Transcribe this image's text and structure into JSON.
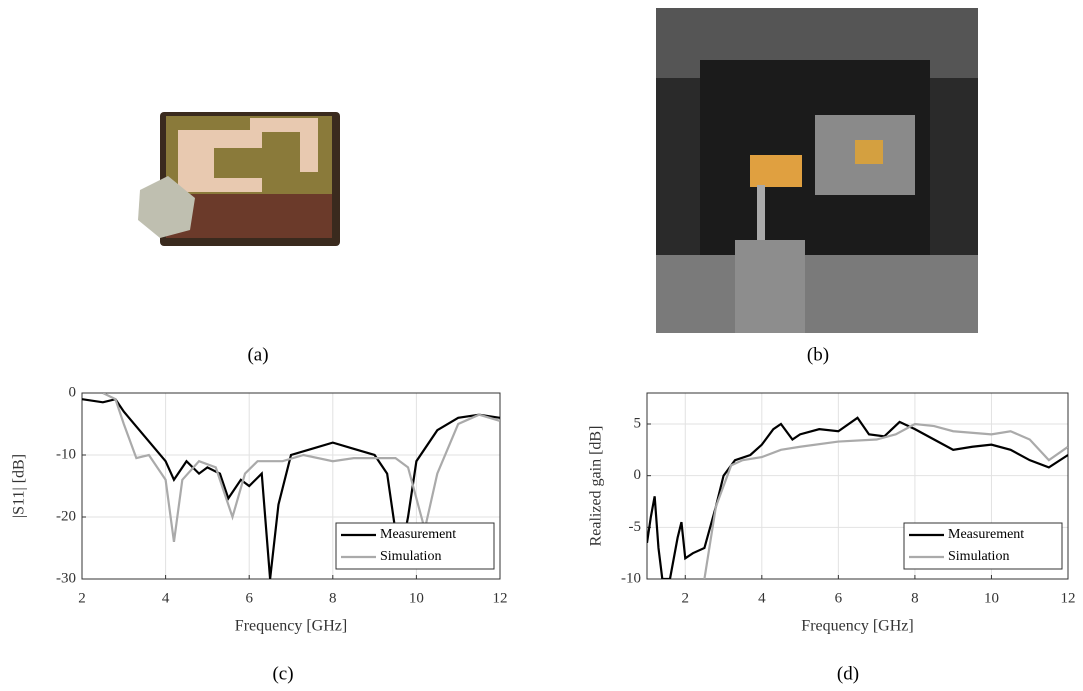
{
  "panel_labels": [
    "(a)",
    "(b)",
    "(c)",
    "(d)"
  ],
  "chart_data": [
    {
      "type": "line",
      "xlabel": "Frequency [GHz]",
      "ylabel": "|S11| [dB]",
      "xlim": [
        2,
        12
      ],
      "ylim": [
        -30,
        0
      ],
      "xticks": [
        2,
        4,
        6,
        8,
        10,
        12
      ],
      "yticks": [
        0,
        -10,
        -20,
        -30
      ],
      "grid": true,
      "legend": "lower-right",
      "series": [
        {
          "name": "Measurement",
          "color": "#000000",
          "x": [
            2,
            2.5,
            2.8,
            3,
            3.5,
            4,
            4.2,
            4.5,
            4.8,
            5,
            5.3,
            5.5,
            5.8,
            6,
            6.3,
            6.5,
            6.7,
            7,
            7.5,
            8,
            8.5,
            9,
            9.3,
            9.6,
            9.8,
            10,
            10.5,
            11,
            11.5,
            12
          ],
          "values": [
            -1,
            -1.5,
            -1,
            -3,
            -7,
            -11,
            -14,
            -11,
            -13,
            -12,
            -13,
            -17,
            -14,
            -15,
            -13,
            -30,
            -18,
            -10,
            -9,
            -8,
            -9,
            -10,
            -13,
            -27,
            -20,
            -11,
            -6,
            -4,
            -3.5,
            -4
          ]
        },
        {
          "name": "Simulation",
          "color": "#aaaaaa",
          "x": [
            2.5,
            2.8,
            3,
            3.3,
            3.6,
            4,
            4.2,
            4.4,
            4.8,
            5.2,
            5.6,
            5.9,
            6.2,
            6.8,
            7.3,
            8,
            8.5,
            9.5,
            9.8,
            10.2,
            10.5,
            11,
            11.5,
            12
          ],
          "values": [
            0,
            -1,
            -5,
            -10.5,
            -10,
            -14,
            -24,
            -14,
            -11,
            -12,
            -20,
            -13,
            -11,
            -11,
            -10,
            -11,
            -10.5,
            -10.5,
            -12,
            -22,
            -13,
            -5,
            -3.5,
            -4.5
          ]
        }
      ]
    },
    {
      "type": "line",
      "xlabel": "Frequency [GHz]",
      "ylabel": "Realized gain [dB]",
      "xlim": [
        1,
        12
      ],
      "ylim": [
        -10,
        8
      ],
      "xticks": [
        2,
        4,
        6,
        8,
        10,
        12
      ],
      "yticks": [
        -10,
        -5,
        0,
        5
      ],
      "grid": true,
      "legend": "lower-right",
      "series": [
        {
          "name": "Measurement",
          "color": "#000000",
          "x": [
            1,
            1.1,
            1.2,
            1.3,
            1.4,
            1.6,
            1.8,
            1.9,
            2,
            2.2,
            2.5,
            2.8,
            3,
            3.3,
            3.7,
            4,
            4.3,
            4.5,
            4.8,
            5,
            5.5,
            6,
            6.5,
            6.8,
            7.2,
            7.6,
            8,
            8.5,
            9,
            9.5,
            10,
            10.5,
            11,
            11.5,
            12
          ],
          "values": [
            -6.5,
            -4,
            -2,
            -7,
            -10,
            -10,
            -6,
            -4.5,
            -8,
            -7.5,
            -7,
            -3,
            0,
            1.5,
            2,
            3,
            4.5,
            5,
            3.5,
            4,
            4.5,
            4.3,
            5.6,
            4,
            3.8,
            5.2,
            4.5,
            3.5,
            2.5,
            2.8,
            3,
            2.5,
            1.5,
            0.8,
            2
          ]
        },
        {
          "name": "Simulation",
          "color": "#aaaaaa",
          "x": [
            2.5,
            2.8,
            3.2,
            3.5,
            4,
            4.5,
            5,
            6,
            7,
            7.5,
            8,
            8.5,
            9,
            10,
            10.5,
            11,
            11.5,
            12
          ],
          "values": [
            -10,
            -3,
            1,
            1.5,
            1.8,
            2.5,
            2.8,
            3.3,
            3.5,
            4,
            5,
            4.8,
            4.3,
            4,
            4.3,
            3.5,
            1.5,
            2.8
          ]
        }
      ]
    }
  ]
}
